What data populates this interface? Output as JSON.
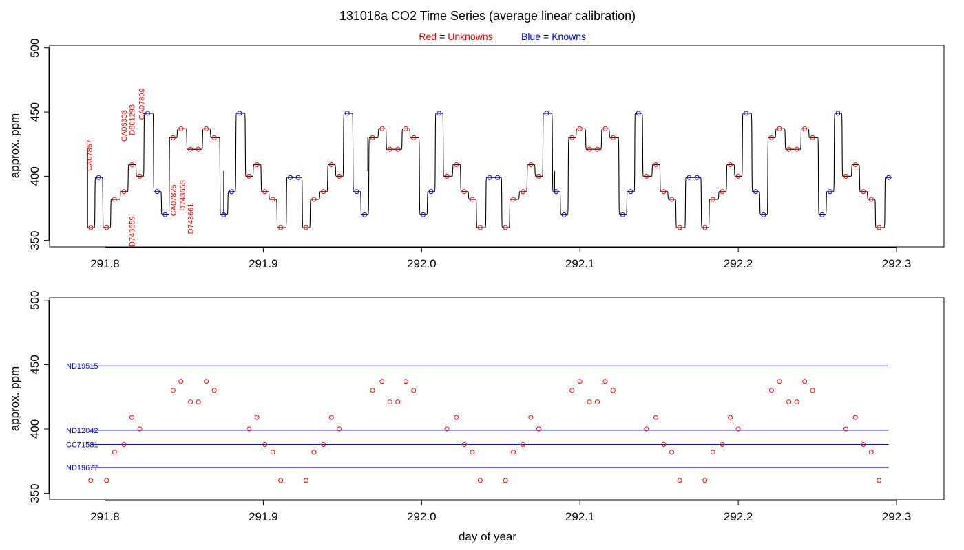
{
  "title": "131018a   CO2 Time Series (average linear calibration)",
  "legend": {
    "red_label": "Red",
    "red_value": "Unknowns",
    "blue_label": "Blue",
    "blue_value": "Knowns",
    "equals": "=",
    "red_color": "#ff0000",
    "blue_color": "#0000ff"
  },
  "colors": {
    "line": "#000000",
    "unknown": "#ff0000",
    "known": "#0000ff",
    "standard_line": "#0000ff"
  },
  "chart_data": [
    {
      "type": "line",
      "ylabel": "approx. ppm",
      "xlabel": "",
      "xlim": [
        291.765,
        292.33
      ],
      "ylim": [
        345,
        502
      ],
      "xticks": [
        291.8,
        291.9,
        292.0,
        292.1,
        292.2,
        292.3
      ],
      "xtick_labels": [
        "291.8",
        "291.9",
        "292.0",
        "292.1",
        "292.2",
        "292.3"
      ],
      "yticks": [
        350,
        400,
        450,
        500
      ],
      "ytick_labels": [
        "350",
        "400",
        "450",
        "500"
      ],
      "levels": [
        [
          291.791,
          360
        ],
        [
          291.796,
          399
        ],
        [
          291.801,
          360
        ],
        [
          291.806,
          382
        ],
        [
          291.812,
          388
        ],
        [
          291.817,
          409
        ],
        [
          291.822,
          400
        ],
        [
          291.827,
          449
        ],
        [
          291.833,
          388
        ],
        [
          291.838,
          370
        ],
        [
          291.843,
          430
        ],
        [
          291.848,
          437
        ],
        [
          291.854,
          421
        ],
        [
          291.859,
          421
        ],
        [
          291.864,
          437
        ],
        [
          291.869,
          430
        ],
        [
          291.875,
          370
        ],
        [
          291.88,
          388
        ],
        [
          291.885,
          449
        ],
        [
          291.891,
          400
        ],
        [
          291.896,
          409
        ],
        [
          291.901,
          388
        ],
        [
          291.906,
          382
        ],
        [
          291.911,
          360
        ],
        [
          291.917,
          399
        ],
        [
          291.922,
          399
        ],
        [
          291.927,
          360
        ],
        [
          291.932,
          382
        ],
        [
          291.938,
          388
        ],
        [
          291.943,
          409
        ],
        [
          291.948,
          400
        ],
        [
          291.953,
          449
        ],
        [
          291.959,
          388
        ],
        [
          291.964,
          370
        ],
        [
          291.969,
          430
        ],
        [
          291.975,
          437
        ],
        [
          291.98,
          421
        ],
        [
          291.985,
          421
        ],
        [
          291.99,
          437
        ],
        [
          291.995,
          430
        ],
        [
          292.001,
          370
        ],
        [
          292.006,
          388
        ],
        [
          292.011,
          449
        ],
        [
          292.016,
          400
        ],
        [
          292.022,
          409
        ],
        [
          292.027,
          388
        ],
        [
          292.032,
          382
        ],
        [
          292.037,
          360
        ],
        [
          292.043,
          399
        ],
        [
          292.048,
          399
        ],
        [
          292.053,
          360
        ],
        [
          292.058,
          382
        ],
        [
          292.064,
          388
        ],
        [
          292.069,
          409
        ],
        [
          292.074,
          400
        ],
        [
          292.079,
          449
        ],
        [
          292.085,
          388
        ],
        [
          292.09,
          370
        ],
        [
          292.095,
          430
        ],
        [
          292.1,
          437
        ],
        [
          292.106,
          421
        ],
        [
          292.111,
          421
        ],
        [
          292.116,
          437
        ],
        [
          292.121,
          430
        ],
        [
          292.127,
          370
        ],
        [
          292.132,
          388
        ],
        [
          292.137,
          449
        ],
        [
          292.142,
          400
        ],
        [
          292.148,
          409
        ],
        [
          292.153,
          388
        ],
        [
          292.158,
          382
        ],
        [
          292.163,
          360
        ],
        [
          292.169,
          399
        ],
        [
          292.174,
          399
        ],
        [
          292.179,
          360
        ],
        [
          292.184,
          382
        ],
        [
          292.19,
          388
        ],
        [
          292.195,
          409
        ],
        [
          292.2,
          400
        ],
        [
          292.205,
          449
        ],
        [
          292.211,
          388
        ],
        [
          292.216,
          370
        ],
        [
          292.221,
          430
        ],
        [
          292.226,
          437
        ],
        [
          292.232,
          421
        ],
        [
          292.237,
          421
        ],
        [
          292.242,
          437
        ],
        [
          292.247,
          430
        ],
        [
          292.253,
          370
        ],
        [
          292.258,
          388
        ],
        [
          292.263,
          449
        ],
        [
          292.268,
          400
        ],
        [
          292.274,
          409
        ],
        [
          292.279,
          388
        ],
        [
          292.284,
          382
        ],
        [
          292.289,
          360
        ],
        [
          292.295,
          399
        ]
      ],
      "point_colors": [
        "red",
        "blue",
        "red",
        "red",
        "red",
        "red",
        "red",
        "blue",
        "blue",
        "blue",
        "red",
        "red",
        "red",
        "red",
        "red",
        "red",
        "blue",
        "blue",
        "blue",
        "red",
        "red",
        "red",
        "red",
        "red",
        "blue",
        "blue",
        "red",
        "red",
        "red",
        "red",
        "red",
        "blue",
        "blue",
        "blue",
        "red",
        "red",
        "red",
        "red",
        "red",
        "red",
        "blue",
        "blue",
        "blue",
        "red",
        "red",
        "red",
        "red",
        "red",
        "blue",
        "blue",
        "red",
        "red",
        "red",
        "red",
        "red",
        "blue",
        "blue",
        "blue",
        "red",
        "red",
        "red",
        "red",
        "red",
        "red",
        "blue",
        "blue",
        "blue",
        "red",
        "red",
        "red",
        "red",
        "red",
        "blue",
        "blue",
        "red",
        "red",
        "red",
        "red",
        "red",
        "blue",
        "blue",
        "blue",
        "red",
        "red",
        "red",
        "red",
        "red",
        "red",
        "blue",
        "blue",
        "blue",
        "red",
        "red",
        "red",
        "red",
        "red",
        "blue"
      ],
      "spikes": [
        {
          "x": 291.789,
          "from": 360,
          "to": 421
        },
        {
          "x": 291.875,
          "from": 370,
          "to": 404
        },
        {
          "x": 291.966,
          "from": 404,
          "to": 430
        },
        {
          "x": 292.084,
          "from": 388,
          "to": 404
        }
      ],
      "annotations": [
        {
          "text": "CA07857",
          "x": 291.79,
          "y": 404
        },
        {
          "text": "CA06308",
          "x": 291.812,
          "y": 427
        },
        {
          "text": "D801293",
          "x": 291.817,
          "y": 432
        },
        {
          "text": "CA07809",
          "x": 291.823,
          "y": 444
        },
        {
          "text": "D743659",
          "x": 291.817,
          "y": 345
        },
        {
          "text": "CA07825",
          "x": 291.843,
          "y": 369
        },
        {
          "text": "D743653",
          "x": 291.849,
          "y": 373
        },
        {
          "text": "D743661",
          "x": 291.854,
          "y": 355
        }
      ]
    },
    {
      "type": "scatter",
      "ylabel": "approx. ppm",
      "xlabel": "day of year",
      "xlim": [
        291.765,
        292.33
      ],
      "ylim": [
        345,
        502
      ],
      "xticks": [
        291.8,
        291.9,
        292.0,
        292.1,
        292.2,
        292.3
      ],
      "xtick_labels": [
        "291.8",
        "291.9",
        "292.0",
        "292.1",
        "292.2",
        "292.3"
      ],
      "yticks": [
        350,
        400,
        450,
        500
      ],
      "ytick_labels": [
        "350",
        "400",
        "450",
        "500"
      ],
      "standards": [
        {
          "name": "ND19515",
          "value": 449
        },
        {
          "name": "ND12042",
          "value": 399
        },
        {
          "name": "CC71581",
          "value": 388
        },
        {
          "name": "ND19677",
          "value": 370
        }
      ],
      "standards_xrange": [
        291.791,
        292.295
      ],
      "points": [
        [
          291.791,
          360
        ],
        [
          291.801,
          360
        ],
        [
          291.806,
          382
        ],
        [
          291.812,
          388
        ],
        [
          291.817,
          409
        ],
        [
          291.822,
          400
        ],
        [
          291.843,
          430
        ],
        [
          291.848,
          437
        ],
        [
          291.854,
          421
        ],
        [
          291.859,
          421
        ],
        [
          291.864,
          437
        ],
        [
          291.869,
          430
        ],
        [
          291.891,
          400
        ],
        [
          291.896,
          409
        ],
        [
          291.901,
          388
        ],
        [
          291.906,
          382
        ],
        [
          291.911,
          360
        ],
        [
          291.927,
          360
        ],
        [
          291.932,
          382
        ],
        [
          291.938,
          388
        ],
        [
          291.943,
          409
        ],
        [
          291.948,
          400
        ],
        [
          291.969,
          430
        ],
        [
          291.975,
          437
        ],
        [
          291.98,
          421
        ],
        [
          291.985,
          421
        ],
        [
          291.99,
          437
        ],
        [
          291.995,
          430
        ],
        [
          292.016,
          400
        ],
        [
          292.022,
          409
        ],
        [
          292.027,
          388
        ],
        [
          292.032,
          382
        ],
        [
          292.037,
          360
        ],
        [
          292.053,
          360
        ],
        [
          292.058,
          382
        ],
        [
          292.064,
          388
        ],
        [
          292.069,
          409
        ],
        [
          292.074,
          400
        ],
        [
          292.095,
          430
        ],
        [
          292.1,
          437
        ],
        [
          292.106,
          421
        ],
        [
          292.111,
          421
        ],
        [
          292.116,
          437
        ],
        [
          292.121,
          430
        ],
        [
          292.142,
          400
        ],
        [
          292.148,
          409
        ],
        [
          292.153,
          388
        ],
        [
          292.158,
          382
        ],
        [
          292.163,
          360
        ],
        [
          292.179,
          360
        ],
        [
          292.184,
          382
        ],
        [
          292.19,
          388
        ],
        [
          292.195,
          409
        ],
        [
          292.2,
          400
        ],
        [
          292.221,
          430
        ],
        [
          292.226,
          437
        ],
        [
          292.232,
          421
        ],
        [
          292.237,
          421
        ],
        [
          292.242,
          437
        ],
        [
          292.247,
          430
        ],
        [
          292.268,
          400
        ],
        [
          292.274,
          409
        ],
        [
          292.279,
          388
        ],
        [
          292.284,
          382
        ],
        [
          292.289,
          360
        ]
      ]
    }
  ]
}
